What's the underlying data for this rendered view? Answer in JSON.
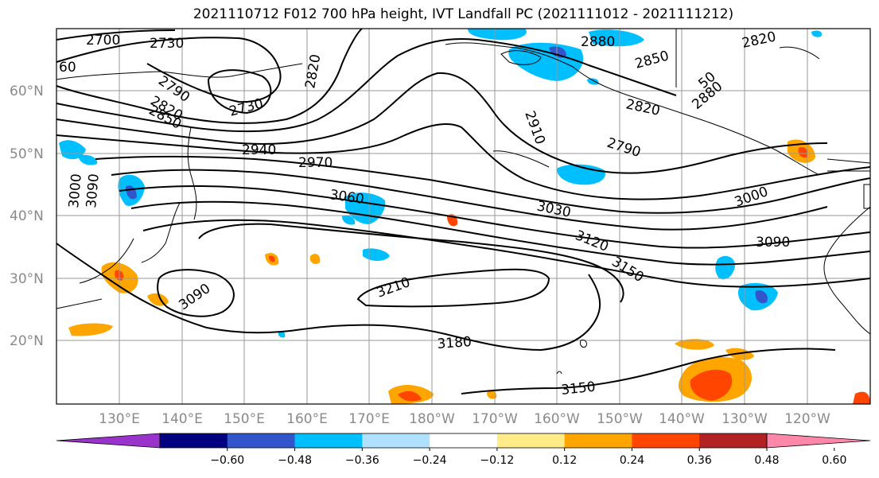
{
  "title": "2021110712 F012 700 hPa height, IVT Landfall PC (2021111012 - 2021111212)",
  "lon_labels": [
    "130°E",
    "140°E",
    "150°E",
    "160°E",
    "170°E",
    "180°W",
    "170°W",
    "160°W",
    "150°W",
    "140°W",
    "130°W",
    "120°W"
  ],
  "lat_labels": [
    "60°N",
    "50°N",
    "40°N",
    "30°N",
    "20°N"
  ],
  "contour_labels": [
    "2700",
    "2730",
    "60",
    "2790",
    "2820",
    "2850",
    "2880",
    "2820",
    "2730",
    "2820",
    "2850",
    "2880",
    "2910",
    "2940",
    "2970",
    "3000",
    "3030",
    "3060",
    "3090",
    "3120",
    "3150",
    "3180",
    "3210",
    "3090",
    "3150",
    "2820",
    "2790",
    "3000",
    "3090",
    "50"
  ],
  "colorbar": {
    "colors": [
      "#9933cc",
      "#000080",
      "#3355cc",
      "#00bfff",
      "#b0e2ff",
      "#ffffff",
      "#ffeb88",
      "#ffa500",
      "#ff4500",
      "#b22222",
      "#ff88aa"
    ],
    "tick_labels": [
      "−0.60",
      "−0.48",
      "−0.36",
      "−0.24",
      "−0.12",
      "0.12",
      "0.24",
      "0.36",
      "0.48",
      "0.60"
    ]
  }
}
